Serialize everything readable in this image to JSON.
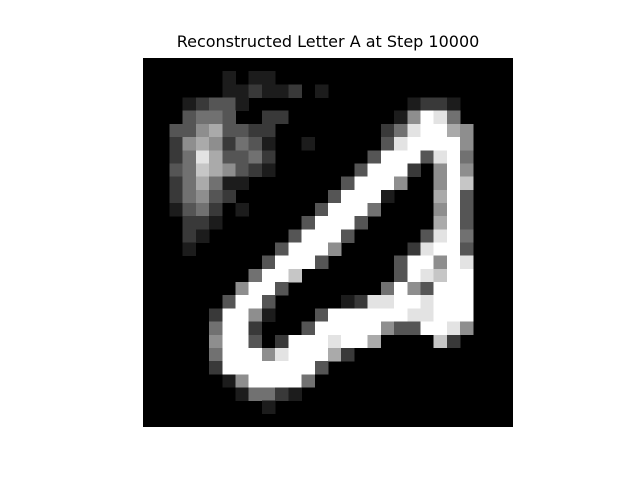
{
  "figure": {
    "title": "Reconstructed Letter A at Step 10000"
  },
  "image": {
    "description": "28x28 grayscale reconstruction",
    "grid_size": 28,
    "background": "#000000",
    "foreground": "#ffffff",
    "pixels": [
      "0000000000000000000000000000",
      "0000001011000000000000000000",
      "0000001121120100000000000000",
      "0001233100000000000012210000",
      "0003443002200000000159840000",
      "0033563322000000002489965000",
      "0025652431001000003899995000",
      "0024863342000000039993894000",
      "0034765321000000399920595000",
      "0024641100000003999500597000",
      "0024532000000039991000693000",
      "0013420100000399940000593000",
      "0002210000003999300000693000",
      "0002100000039993000003894000",
      "0001000000399950000028993000",
      "0000000003999300000399598000",
      "0000000049970000000398799000",
      "0000000599300000004953999000",
      "0000003993000001288998999000",
      "0000029951000399999988999000",
      "0000049920003999995339985000",
      "0000059930299989960000720000",
      "0000049995899962000000000000",
      "0000029999999300000000000000",
      "0000001599994000000000000000",
      "0000000144210000000000000000",
      "0000000001000000000000000000",
      "0000000000000000000000000000"
    ]
  }
}
